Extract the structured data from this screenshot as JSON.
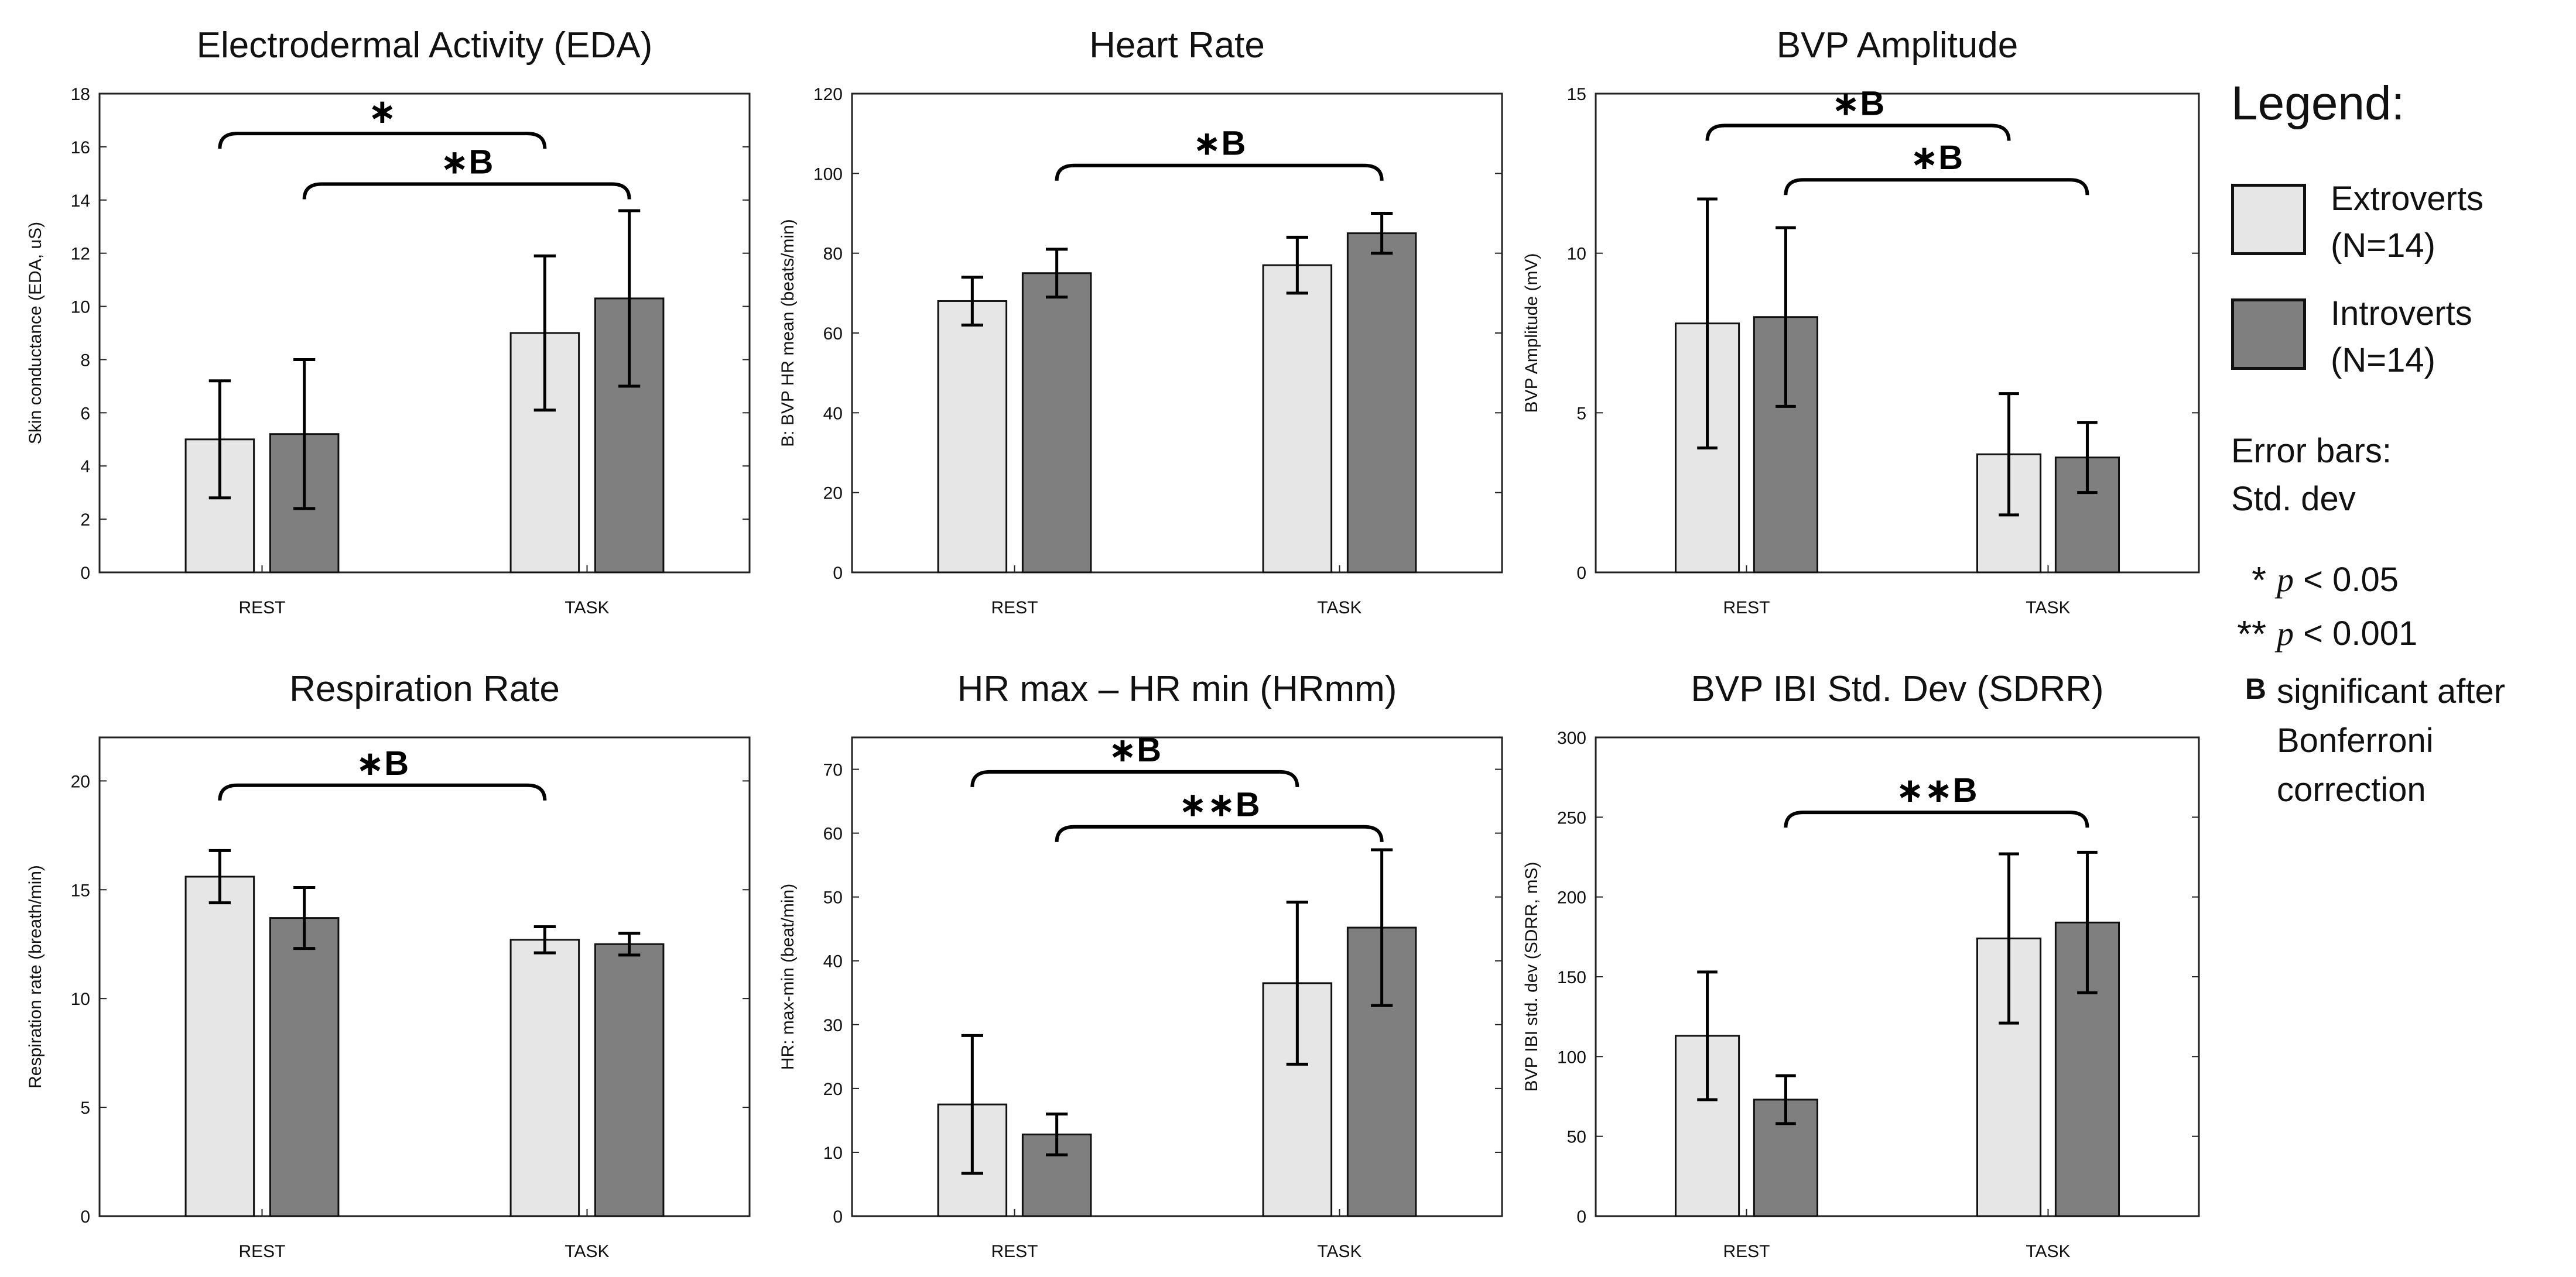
{
  "chart_data": [
    {
      "type": "bar",
      "title": "Electrodermal Activity (EDA)",
      "ylabel": "Skin conductance (EDA, uS)",
      "xlabel": "",
      "categories": [
        "REST",
        "TASK"
      ],
      "ylim": [
        0,
        18
      ],
      "yticks": [
        0,
        2,
        4,
        6,
        8,
        10,
        12,
        14,
        16,
        18
      ],
      "series": [
        {
          "name": "Extroverts (N=14)",
          "values": [
            5.0,
            9.0
          ],
          "errors": [
            2.2,
            2.9
          ]
        },
        {
          "name": "Introverts (N=14)",
          "values": [
            5.2,
            10.3
          ],
          "errors": [
            2.8,
            3.3
          ]
        }
      ],
      "significance": [
        {
          "from_category": "REST",
          "from_series": 0,
          "to_category": "TASK",
          "to_series": 0,
          "label": "*",
          "level": 16.5
        },
        {
          "from_category": "REST",
          "from_series": 1,
          "to_category": "TASK",
          "to_series": 1,
          "label": "*B",
          "level": 14.6
        }
      ]
    },
    {
      "type": "bar",
      "title": "Heart Rate",
      "ylabel": "B: BVP HR mean (beats/min)",
      "xlabel": "",
      "categories": [
        "REST",
        "TASK"
      ],
      "ylim": [
        0,
        120
      ],
      "yticks": [
        0,
        20,
        40,
        60,
        80,
        100,
        120
      ],
      "series": [
        {
          "name": "Extroverts (N=14)",
          "values": [
            68,
            77
          ],
          "errors": [
            6,
            7
          ]
        },
        {
          "name": "Introverts (N=14)",
          "values": [
            75,
            85
          ],
          "errors": [
            6,
            5
          ]
        }
      ],
      "significance": [
        {
          "from_category": "REST",
          "from_series": 1,
          "to_category": "TASK",
          "to_series": 1,
          "label": "*B",
          "level": 102
        }
      ]
    },
    {
      "type": "bar",
      "title": "BVP Amplitude",
      "ylabel": "BVP Amplitude (mV)",
      "xlabel": "",
      "categories": [
        "REST",
        "TASK"
      ],
      "ylim": [
        0,
        15
      ],
      "yticks": [
        0,
        5,
        10,
        15
      ],
      "series": [
        {
          "name": "Extroverts (N=14)",
          "values": [
            7.8,
            3.7
          ],
          "errors": [
            3.9,
            1.9
          ]
        },
        {
          "name": "Introverts (N=14)",
          "values": [
            8.0,
            3.6
          ],
          "errors": [
            2.8,
            1.1
          ]
        }
      ],
      "significance": [
        {
          "from_category": "REST",
          "from_series": 0,
          "to_category": "TASK",
          "to_series": 0,
          "label": "*B",
          "level": 14.0
        },
        {
          "from_category": "REST",
          "from_series": 1,
          "to_category": "TASK",
          "to_series": 1,
          "label": "*B",
          "level": 12.3
        }
      ]
    },
    {
      "type": "bar",
      "title": "Respiration Rate",
      "ylabel": "Respiration rate (breath/min)",
      "xlabel": "",
      "categories": [
        "REST",
        "TASK"
      ],
      "ylim": [
        0,
        22
      ],
      "yticks": [
        0,
        5,
        10,
        15,
        20
      ],
      "series": [
        {
          "name": "Extroverts (N=14)",
          "values": [
            15.6,
            12.7
          ],
          "errors": [
            1.2,
            0.6
          ]
        },
        {
          "name": "Introverts (N=14)",
          "values": [
            13.7,
            12.5
          ],
          "errors": [
            1.4,
            0.5
          ]
        }
      ],
      "significance": [
        {
          "from_category": "REST",
          "from_series": 0,
          "to_category": "TASK",
          "to_series": 0,
          "label": "*B",
          "level": 19.8
        }
      ]
    },
    {
      "type": "bar",
      "title": "HR max – HR min (HRmm)",
      "ylabel": "HR: max-min (beat/min)",
      "xlabel": "",
      "categories": [
        "REST",
        "TASK"
      ],
      "ylim": [
        0,
        75
      ],
      "yticks": [
        0,
        10,
        20,
        30,
        40,
        50,
        60,
        70
      ],
      "series": [
        {
          "name": "Extroverts (N=14)",
          "values": [
            17.5,
            36.5
          ],
          "errors": [
            10.8,
            12.7
          ]
        },
        {
          "name": "Introverts (N=14)",
          "values": [
            12.8,
            45.2
          ],
          "errors": [
            3.2,
            12.2
          ]
        }
      ],
      "significance": [
        {
          "from_category": "REST",
          "from_series": 0,
          "to_category": "TASK",
          "to_series": 0,
          "label": "*B",
          "level": 69.6
        },
        {
          "from_category": "REST",
          "from_series": 1,
          "to_category": "TASK",
          "to_series": 1,
          "label": "**B",
          "level": 61.0
        }
      ]
    },
    {
      "type": "bar",
      "title": "BVP IBI Std. Dev (SDRR)",
      "ylabel": "BVP IBI std. dev (SDRR, mS)",
      "xlabel": "",
      "categories": [
        "REST",
        "TASK"
      ],
      "ylim": [
        0,
        300
      ],
      "yticks": [
        0,
        50,
        100,
        150,
        200,
        250,
        300
      ],
      "series": [
        {
          "name": "Extroverts (N=14)",
          "values": [
            113,
            174
          ],
          "errors": [
            40,
            53
          ]
        },
        {
          "name": "Introverts (N=14)",
          "values": [
            73,
            184
          ],
          "errors": [
            15,
            44
          ]
        }
      ],
      "significance": [
        {
          "from_category": "REST",
          "from_series": 1,
          "to_category": "TASK",
          "to_series": 1,
          "label": "**B",
          "level": 253
        }
      ]
    }
  ],
  "colors": {
    "extroverts": "#e6e6e6",
    "introverts": "#7f7f7f",
    "ink": "#000000"
  },
  "legend": {
    "title": "Legend:",
    "extroverts_line1": "Extroverts",
    "extroverts_line2": "(N=14)",
    "introverts_line1": "Introverts",
    "introverts_line2": "(N=14)",
    "error_line1": "Error bars:",
    "error_line2": "Std. dev",
    "sig1_symbol": "*",
    "sig1_p": "p",
    "sig1_value": " < 0.05",
    "sig2_symbol": "**",
    "sig2_p": "p",
    "sig2_value": " < 0.001",
    "sig3_symbol": "B",
    "sig3_line1": "significant after",
    "sig3_line2": "Bonferroni",
    "sig3_line3": "correction"
  }
}
